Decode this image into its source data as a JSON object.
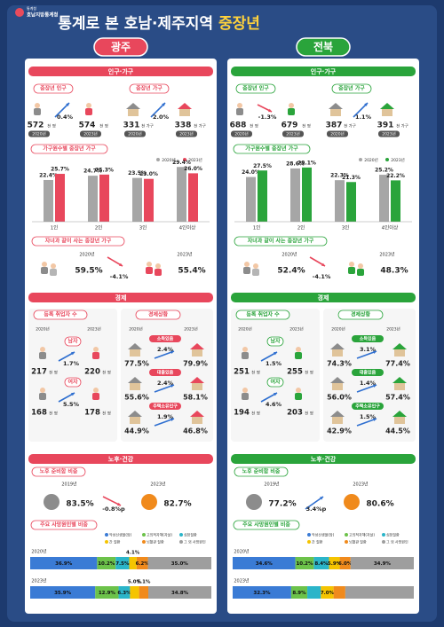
{
  "header": {
    "org_top": "통계청",
    "org": "호남지방통계청",
    "title": "통계로 본 호남·제주지역",
    "title_highlight": "중장년"
  },
  "regions": [
    {
      "name": "광주",
      "color": "#e8475c",
      "pop": {
        "title": "인구·가구",
        "items": [
          {
            "label": "중장년 인구",
            "from": {
              "value": "572",
              "unit": "천 명",
              "year": "2020년"
            },
            "change": "0.4%",
            "to": {
              "value": "574",
              "unit": "천 명",
              "year": "2023년"
            }
          },
          {
            "label": "중장년 가구",
            "from": {
              "value": "331",
              "unit": "천 가구",
              "year": "2020년"
            },
            "change": "2.0%",
            "to": {
              "value": "338",
              "unit": "천 가구",
              "year": "2023년"
            }
          }
        ]
      },
      "hh": {
        "title": "가구원수별 중장년 가구",
        "categories": [
          "1인",
          "2인",
          "3인",
          "4인이상"
        ],
        "series": [
          {
            "name": "2020년",
            "color": "#a6a6a6",
            "values": [
              22.4,
              24.7,
              23.5,
              29.4
            ],
            "value_labels": [
              "22.4%",
              "24.7%",
              "23.5%",
              "29.4%"
            ]
          },
          {
            "name": "2023년",
            "color": "#e8475c",
            "values": [
              25.7,
              25.3,
              23.0,
              26.0
            ],
            "value_labels": [
              "25.7%",
              "25.3%",
              "23.0%",
              "26.0%"
            ]
          }
        ]
      },
      "kids": {
        "title": "자녀과 같이 사는 중장년 가구",
        "from": {
          "year": "2020년",
          "value": "59.5%"
        },
        "change": "-4.1%",
        "to": {
          "year": "2023년",
          "value": "55.4%"
        }
      },
      "econ": {
        "title": "경제",
        "emp": {
          "title": "등록 취업자 수",
          "years": [
            "2020년",
            "2023년"
          ],
          "unit": "천 명",
          "rows": [
            {
              "label": "남자",
              "from": "217",
              "change": "1.7%",
              "to": "220"
            },
            {
              "label": "여자",
              "from": "168",
              "change": "5.5%",
              "to": "178"
            }
          ]
        },
        "status": {
          "title": "경제상황",
          "years": [
            "2020년",
            "2023년"
          ],
          "rows": [
            {
              "label": "소득있음",
              "from": "77.5%",
              "change": "2.4%",
              "to": "79.9%"
            },
            {
              "label": "대출있음",
              "from": "55.6%",
              "change": "2.4%",
              "to": "58.1%"
            },
            {
              "label": "주택소유인구",
              "from": "44.9%",
              "change": "1.9%",
              "to": "46.8%"
            }
          ]
        }
      },
      "old": {
        "title": "노후·건강",
        "prep": {
          "title": "노후 준비함 비중",
          "from": {
            "year": "2019년",
            "value": "83.5%"
          },
          "change": "-0.8%p",
          "to": {
            "year": "2023년",
            "value": "82.7%"
          }
        },
        "death": {
          "title": "주요 사망원인별 비중",
          "causes": [
            "악성신생물(암)",
            "고의적자해(자살)",
            "심장질환",
            "간 질환",
            "뇌혈관 질환",
            "그 외 사망원인"
          ],
          "colors": [
            "#3a7bd5",
            "#6cc24a",
            "#2bb5c9",
            "#f5c400",
            "#f08a1c",
            "#9e9e9e"
          ],
          "rows": [
            {
              "year": "2020년",
              "values": [
                36.9,
                10.2,
                7.5,
                4.1,
                6.2,
                35.0
              ],
              "value_labels": [
                "36.9%",
                "10.2%",
                "7.5%",
                "4.1%",
                "6.2%",
                "35.0%"
              ]
            },
            {
              "year": "2023년",
              "values": [
                35.9,
                12.9,
                6.3,
                5.0,
                5.1,
                34.8
              ],
              "value_labels": [
                "35.9%",
                "12.9%",
                "6.3%",
                "5.0%",
                "5.1%",
                "34.8%"
              ]
            }
          ]
        }
      }
    },
    {
      "name": "전북",
      "color": "#2aa43b",
      "pop": {
        "title": "인구·가구",
        "items": [
          {
            "label": "중장년 인구",
            "from": {
              "value": "688",
              "unit": "천 명",
              "year": "2020년"
            },
            "change": "-1.3%",
            "to": {
              "value": "679",
              "unit": "천 명",
              "year": "2023년"
            }
          },
          {
            "label": "중장년 가구",
            "from": {
              "value": "387",
              "unit": "천 가구",
              "year": "2020년"
            },
            "change": "1.1%",
            "to": {
              "value": "391",
              "unit": "천 가구",
              "year": "2023년"
            }
          }
        ]
      },
      "hh": {
        "title": "가구원수별 중장년 가구",
        "categories": [
          "1인",
          "2인",
          "3인",
          "4인이상"
        ],
        "series": [
          {
            "name": "2020년",
            "color": "#a6a6a6",
            "values": [
              24.0,
              28.6,
              22.3,
              25.2
            ],
            "value_labels": [
              "24.0%",
              "28.6%",
              "22.3%",
              "25.2%"
            ]
          },
          {
            "name": "2023년",
            "color": "#2aa43b",
            "values": [
              27.5,
              29.1,
              21.3,
              22.2
            ],
            "value_labels": [
              "27.5%",
              "29.1%",
              "21.3%",
              "22.2%"
            ]
          }
        ]
      },
      "kids": {
        "title": "자녀과 같이 사는 중장년 가구",
        "from": {
          "year": "2020년",
          "value": "52.4%"
        },
        "change": "-4.1%",
        "to": {
          "year": "2023년",
          "value": "48.3%"
        }
      },
      "econ": {
        "title": "경제",
        "emp": {
          "title": "등록 취업자 수",
          "years": [
            "2020년",
            "2023년"
          ],
          "unit": "천 명",
          "rows": [
            {
              "label": "남자",
              "from": "251",
              "change": "1.5%",
              "to": "255"
            },
            {
              "label": "여자",
              "from": "194",
              "change": "4.6%",
              "to": "203"
            }
          ]
        },
        "status": {
          "title": "경제상황",
          "years": [
            "2020년",
            "2023년"
          ],
          "rows": [
            {
              "label": "소득있음",
              "from": "74.3%",
              "change": "3.1%",
              "to": "77.4%"
            },
            {
              "label": "대출있음",
              "from": "56.0%",
              "change": "1.4%",
              "to": "57.4%"
            },
            {
              "label": "주택소유인구",
              "from": "42.9%",
              "change": "1.5%",
              "to": "44.5%"
            }
          ]
        }
      },
      "old": {
        "title": "노후·건강",
        "prep": {
          "title": "노후 준비함 비중",
          "from": {
            "year": "2019년",
            "value": "77.2%"
          },
          "change": "3.4%p",
          "to": {
            "year": "2023년",
            "value": "80.6%"
          }
        },
        "death": {
          "title": "주요 사망원인별 비중",
          "causes": [
            "악성신생물(암)",
            "고의적자해(자살)",
            "심장질환",
            "간 질환",
            "뇌혈관 질환",
            "그 외 사망원인"
          ],
          "colors": [
            "#3a7bd5",
            "#6cc24a",
            "#2bb5c9",
            "#f5c400",
            "#f08a1c",
            "#9e9e9e"
          ],
          "rows": [
            {
              "year": "2020년",
              "values": [
                34.6,
                10.2,
                8.4,
                5.9,
                6.0,
                34.9
              ],
              "value_labels": [
                "34.6%",
                "10.2%",
                "8.4%",
                "5.9%",
                "6.0%",
                "34.9%"
              ]
            },
            {
              "year": "2023년",
              "values": [
                32.3,
                8.9,
                7.5,
                7.0,
                6.5,
                37.8
              ],
              "value_labels": [
                "32.3%",
                "8.9%",
                null,
                "7.0%",
                null,
                null
              ]
            }
          ]
        }
      }
    }
  ]
}
